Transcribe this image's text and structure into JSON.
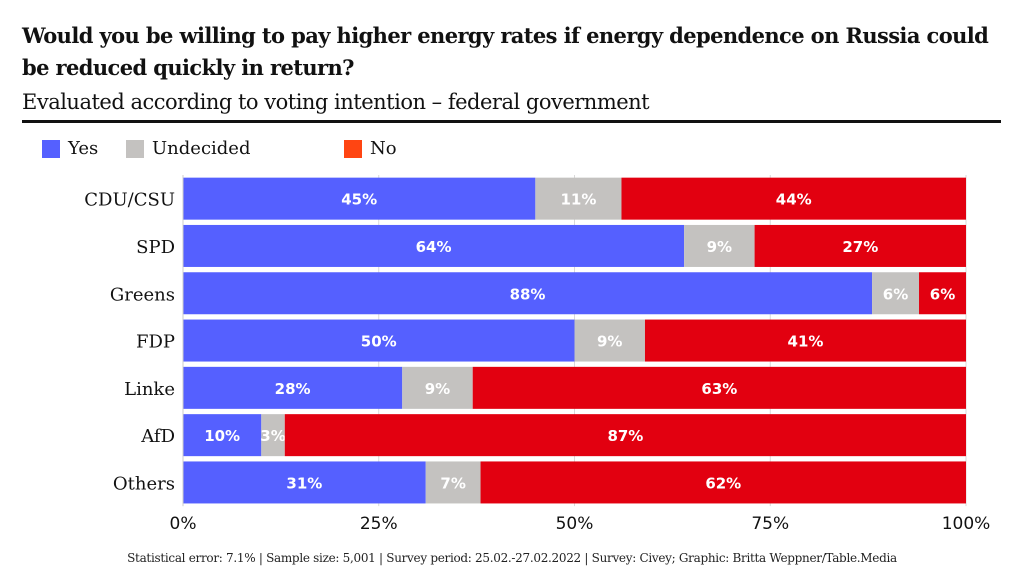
{
  "title": "Would you be willing to pay higher energy rates if energy dependence on Russia could be reduced quickly in return?",
  "subtitle": "Evaluated according to voting intention – federal government",
  "footer": "Statistical error: 7.1% | Sample size: 5,001 | Survey period: 25.02.-27.02.2022 | Survey: Civey; Graphic: Britta Weppner/Table.Media",
  "legend": [
    {
      "label": "Yes",
      "color": "#5560ff"
    },
    {
      "label": "Undecided",
      "color": "#c4c2c0"
    },
    {
      "label": "No",
      "color": "#ff4512"
    }
  ],
  "chart_data": {
    "type": "bar",
    "orientation": "horizontal",
    "stacked": true,
    "title": "Would you be willing to pay higher energy rates if energy dependence on Russia could be reduced quickly in return?",
    "subtitle": "Evaluated according to voting intention – federal government",
    "xlabel": "",
    "ylabel": "",
    "xlim": [
      0,
      100
    ],
    "x_ticks": [
      "0%",
      "25%",
      "50%",
      "75%",
      "100%"
    ],
    "x_tick_values": [
      0,
      25,
      50,
      75,
      100
    ],
    "grid": true,
    "legend_position": "top-left",
    "categories": [
      "CDU/CSU",
      "SPD",
      "Greens",
      "FDP",
      "Linke",
      "AfD",
      "Others"
    ],
    "series": [
      {
        "name": "Yes",
        "color": "#5560ff",
        "values": [
          45,
          64,
          88,
          50,
          28,
          10,
          31
        ],
        "labels": [
          "45%",
          "64%",
          "88%",
          "50%",
          "28%",
          "10%",
          "31%"
        ]
      },
      {
        "name": "Undecided",
        "color": "#c4c2c0",
        "values": [
          11,
          9,
          6,
          9,
          9,
          3,
          7
        ],
        "labels": [
          "11%",
          "9%",
          "6%",
          "9%",
          "9%",
          "3%",
          "7%"
        ]
      },
      {
        "name": "No",
        "color": "#e20010",
        "values": [
          44,
          27,
          6,
          41,
          63,
          87,
          62
        ],
        "labels": [
          "44%",
          "27%",
          "6%",
          "41%",
          "63%",
          "87%",
          "62%"
        ]
      }
    ]
  }
}
